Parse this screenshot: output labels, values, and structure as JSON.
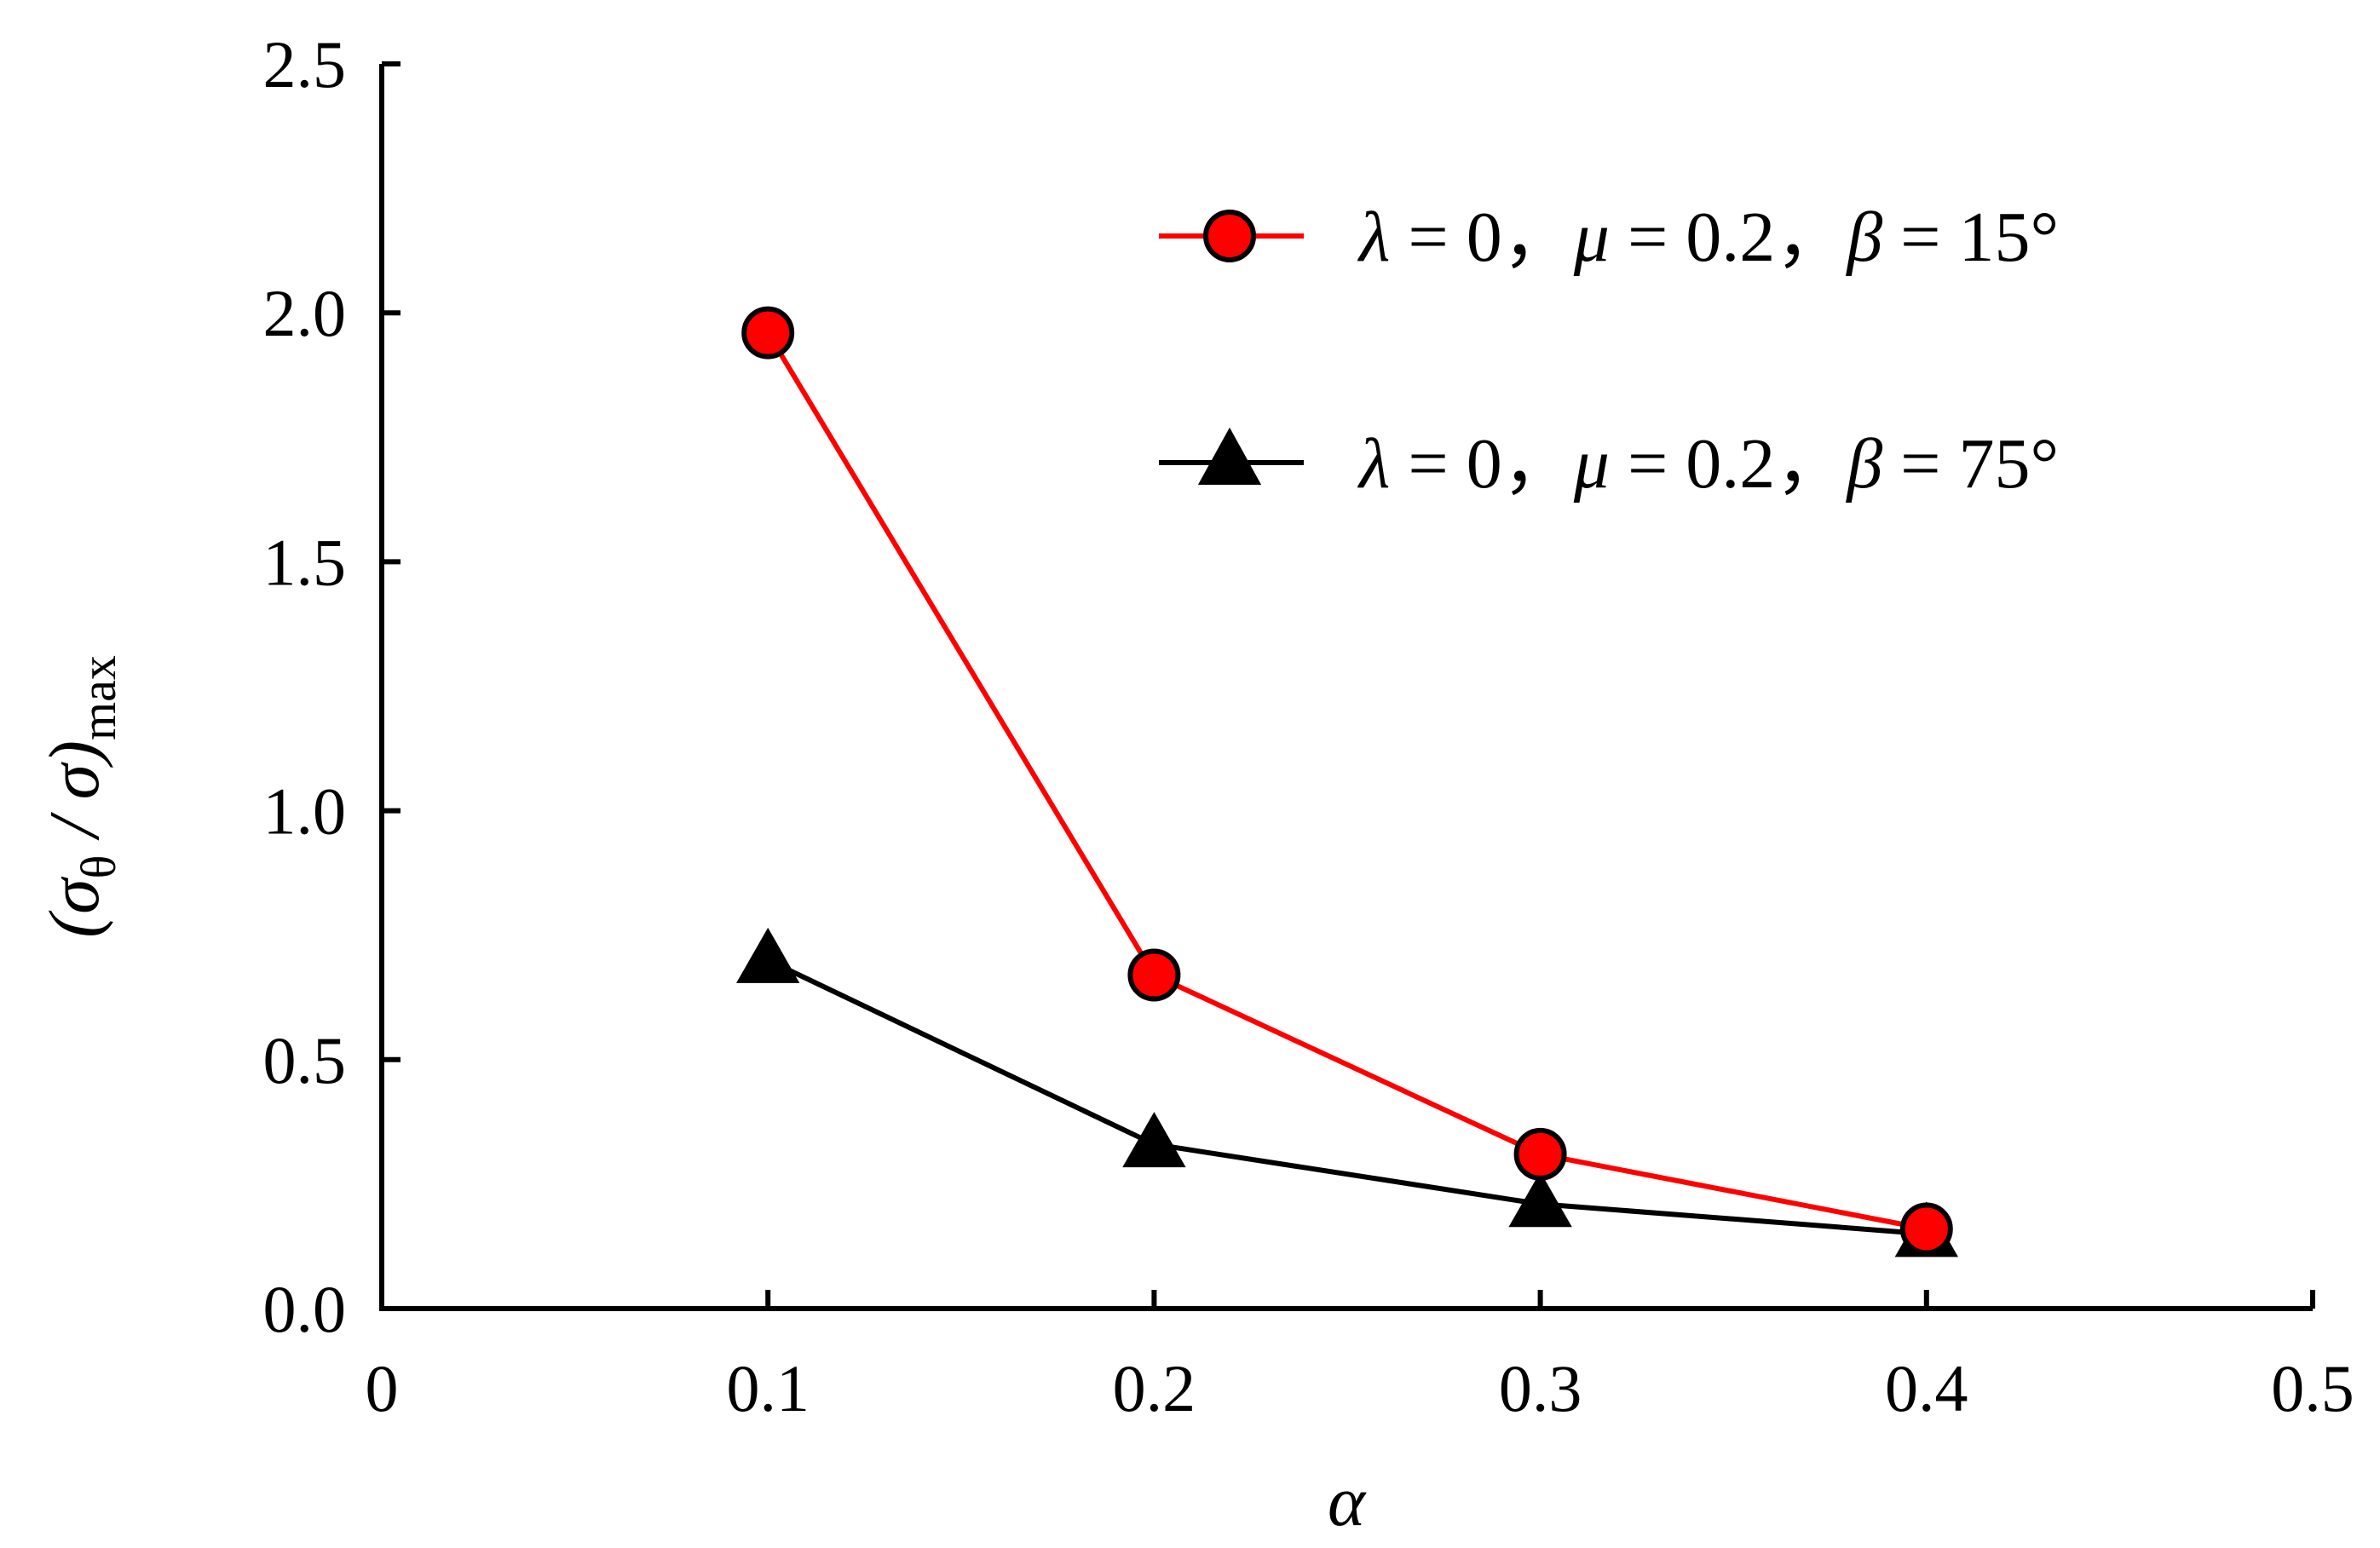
{
  "chart_data": {
    "type": "line",
    "title": "",
    "xlabel": "α",
    "ylabel": {
      "main": "(σ",
      "sub1": "θ",
      "mid": " / σ)",
      "sub2": "max"
    },
    "xlim": [
      0,
      0.5
    ],
    "ylim": [
      0,
      2.5
    ],
    "xticks": [
      "0",
      "0.1",
      "0.2",
      "0.3",
      "0.4",
      "0.5"
    ],
    "yticks": [
      "0.0",
      "0.5",
      "1.0",
      "1.5",
      "2.0",
      "2.5"
    ],
    "grid": false,
    "legend_position": "top-right",
    "series": [
      {
        "name": "λ = 0，μ = 0.2，β = 15°",
        "legend": {
          "l": "λ",
          "a": " = 0，",
          "m": "μ",
          "b": " = 0.2，",
          "be": "β",
          "c": " = 15°"
        },
        "color": "#ff0000",
        "marker": "circle",
        "x": [
          0.1,
          0.2,
          0.3,
          0.4
        ],
        "y": [
          1.96,
          0.67,
          0.31,
          0.16
        ]
      },
      {
        "name": "λ = 0，μ = 0.2，β = 75°",
        "legend": {
          "l": "λ",
          "a": " = 0，",
          "m": "μ",
          "b": " = 0.2，",
          "be": "β",
          "c": " = 75°"
        },
        "color": "#000000",
        "marker": "triangle",
        "x": [
          0.1,
          0.2,
          0.3,
          0.4
        ],
        "y": [
          0.7,
          0.33,
          0.21,
          0.15
        ]
      }
    ]
  }
}
